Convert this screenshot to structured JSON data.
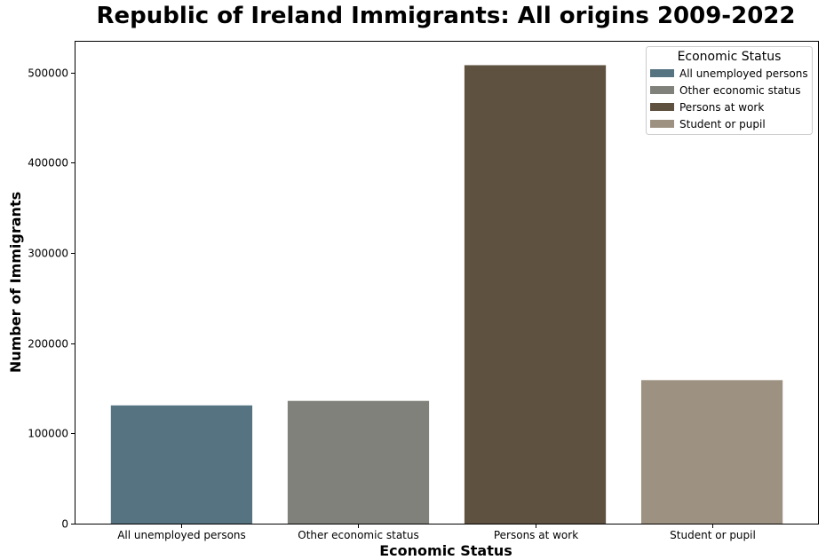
{
  "chart_data": {
    "type": "bar",
    "title": "Republic of Ireland Immigrants: All origins 2009-2022",
    "xlabel": "Economic Status",
    "ylabel": "Number of Immigrants",
    "categories": [
      "All unemployed persons",
      "Other economic status",
      "Persons at work",
      "Student or pupil"
    ],
    "values": [
      131000,
      136000,
      508000,
      159000
    ],
    "colors": [
      "#557380",
      "#80817a",
      "#5e513f",
      "#9d9182"
    ],
    "ylim": [
      0,
      535000
    ],
    "yticks": [
      0,
      100000,
      200000,
      300000,
      400000,
      500000
    ],
    "ytick_labels": [
      "0",
      "100000",
      "200000",
      "300000",
      "400000",
      "500000"
    ],
    "grid": false,
    "legend": {
      "title": "Economic Status",
      "placement": "top-right",
      "entries": [
        "All unemployed persons",
        "Other economic status",
        "Persons at work",
        "Student or pupil"
      ]
    }
  }
}
